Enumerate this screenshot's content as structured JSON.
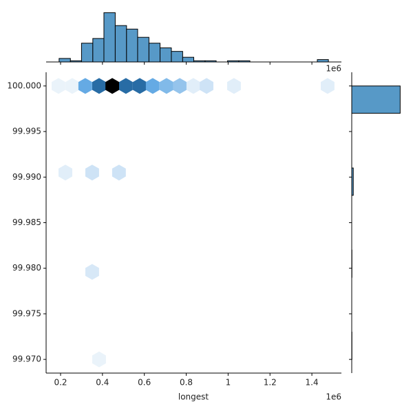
{
  "chart_data": {
    "type": "hexbin",
    "x_label": "longest",
    "x_offset_label": "1e6",
    "top_offset_label": "1e6",
    "xlim": [
      0.131,
      1.541
    ],
    "xticks": [
      0.2,
      0.4,
      0.6,
      0.8,
      1.0,
      1.2,
      1.4
    ],
    "ylim": [
      99.9685,
      100.0015
    ],
    "yticks": [
      {
        "value": 99.97,
        "label": "99.970"
      },
      {
        "value": 99.975,
        "label": "99.975"
      },
      {
        "value": 99.98,
        "label": "99.980"
      },
      {
        "value": 99.985,
        "label": "99.985"
      },
      {
        "value": 99.99,
        "label": "99.990"
      },
      {
        "value": 99.995,
        "label": "99.995"
      },
      {
        "value": 100.0,
        "label": "100.000"
      }
    ],
    "cmap": [
      "#f4f8fc",
      "#3590dc",
      "#000000"
    ],
    "hexes": {
      "x": [
        0.19,
        0.256,
        0.318,
        0.384,
        0.447,
        0.512,
        0.578,
        0.64,
        0.706,
        0.769,
        0.834,
        0.897,
        1.028,
        1.475,
        0.223,
        0.351,
        0.479,
        0.351,
        0.384
      ],
      "y": [
        100.0,
        100.0,
        100.0,
        100.0,
        100.0,
        100.0,
        100.0,
        100.0,
        100.0,
        100.0,
        100.0,
        100.0,
        100.0,
        100.0,
        99.9905,
        99.9905,
        99.9905,
        99.9796,
        99.97
      ],
      "counts": [
        1,
        1,
        15,
        25,
        40,
        25,
        25,
        15,
        12,
        10,
        2,
        4,
        2,
        2,
        2,
        4,
        4,
        3,
        1
      ]
    },
    "hist_color": "#5799c7",
    "top_hist": {
      "bins": [
        0.193,
        0.247,
        0.3,
        0.354,
        0.407,
        0.461,
        0.515,
        0.568,
        0.622,
        0.675,
        0.729,
        0.783,
        0.836,
        0.89,
        0.943,
        0.997,
        1.051,
        1.104,
        1.158,
        1.211,
        1.265,
        1.319,
        1.372,
        1.426,
        1.479
      ],
      "counts": [
        3,
        1,
        16,
        20,
        42,
        31,
        28,
        21,
        16,
        12,
        9,
        4,
        1,
        1,
        0,
        1,
        1,
        0,
        0,
        0,
        0,
        0,
        0,
        2
      ],
      "ylim": [
        0,
        44
      ]
    },
    "right_hist": {
      "bins": [
        99.97,
        99.973,
        99.976,
        99.979,
        99.982,
        99.985,
        99.988,
        99.991,
        99.994,
        99.997,
        100.0
      ],
      "counts": [
        1,
        0,
        0,
        1,
        0,
        0,
        8,
        0,
        0,
        250
      ],
      "xlim": [
        0,
        270
      ]
    }
  }
}
